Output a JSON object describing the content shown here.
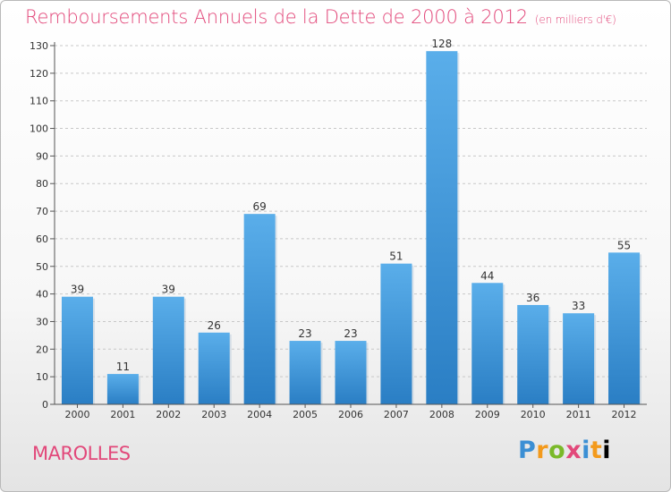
{
  "title": "Remboursements Annuels de la Dette de 2000 à 2012",
  "unit": "(en milliers d'€)",
  "location": "MAROLLES",
  "brand": [
    "P",
    "r",
    "o",
    "x",
    "i",
    "t",
    "i"
  ],
  "colors": {
    "title": "#e2487a",
    "bar_light": "#5aaeea",
    "bar_dark": "#2a7ec4",
    "grid": "#c8c8c8"
  },
  "chart_data": {
    "type": "bar",
    "categories": [
      "2000",
      "2001",
      "2002",
      "2003",
      "2004",
      "2005",
      "2006",
      "2007",
      "2008",
      "2009",
      "2010",
      "2011",
      "2012"
    ],
    "values": [
      39,
      11,
      39,
      26,
      69,
      23,
      23,
      51,
      128,
      44,
      36,
      33,
      55
    ],
    "ylim": [
      0,
      130
    ],
    "yticks": [
      0,
      10,
      20,
      30,
      40,
      50,
      60,
      70,
      80,
      90,
      100,
      110,
      120,
      130
    ],
    "grid": true,
    "data_labels": true
  }
}
